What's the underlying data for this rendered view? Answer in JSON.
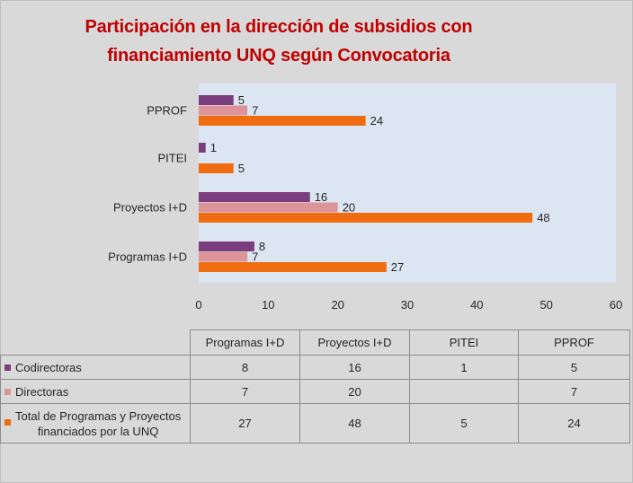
{
  "title_lines": [
    "Participación en la dirección de subsidios con",
    "financiamiento UNQ según Convocatoria"
  ],
  "chart_data": {
    "type": "bar",
    "orientation": "horizontal",
    "categories": [
      "PPROF",
      "PITEI",
      "Proyectos I+D",
      "Programas I+D"
    ],
    "series": [
      {
        "name": "Codirectoras",
        "color": "#7a3d7e",
        "values": [
          5,
          1,
          16,
          8
        ]
      },
      {
        "name": "Directoras",
        "color": "#dc9499",
        "values": [
          7,
          null,
          20,
          7
        ]
      },
      {
        "name": "Total de Programas y Proyectos financiados por la UNQ",
        "color": "#ef6d10",
        "values": [
          24,
          5,
          48,
          27
        ]
      }
    ],
    "xlim": [
      0,
      60
    ],
    "xticks": [
      0,
      10,
      20,
      30,
      40,
      50,
      60
    ],
    "grid": false,
    "legend": "data table below"
  },
  "table": {
    "columns": [
      "Programas I+D",
      "Proyectos I+D",
      "PITEI",
      "PPROF"
    ],
    "rows": [
      {
        "label": "Codirectoras",
        "color": "#7a3d7e",
        "values": [
          "8",
          "16",
          "1",
          "5"
        ]
      },
      {
        "label": "Directoras",
        "color": "#dc9499",
        "values": [
          "7",
          "20",
          "",
          "7"
        ]
      },
      {
        "label_lines": [
          "Total de Programas y Proyectos",
          "financiados por la UNQ"
        ],
        "color": "#ef6d10",
        "values": [
          "27",
          "48",
          "5",
          "24"
        ]
      }
    ]
  }
}
